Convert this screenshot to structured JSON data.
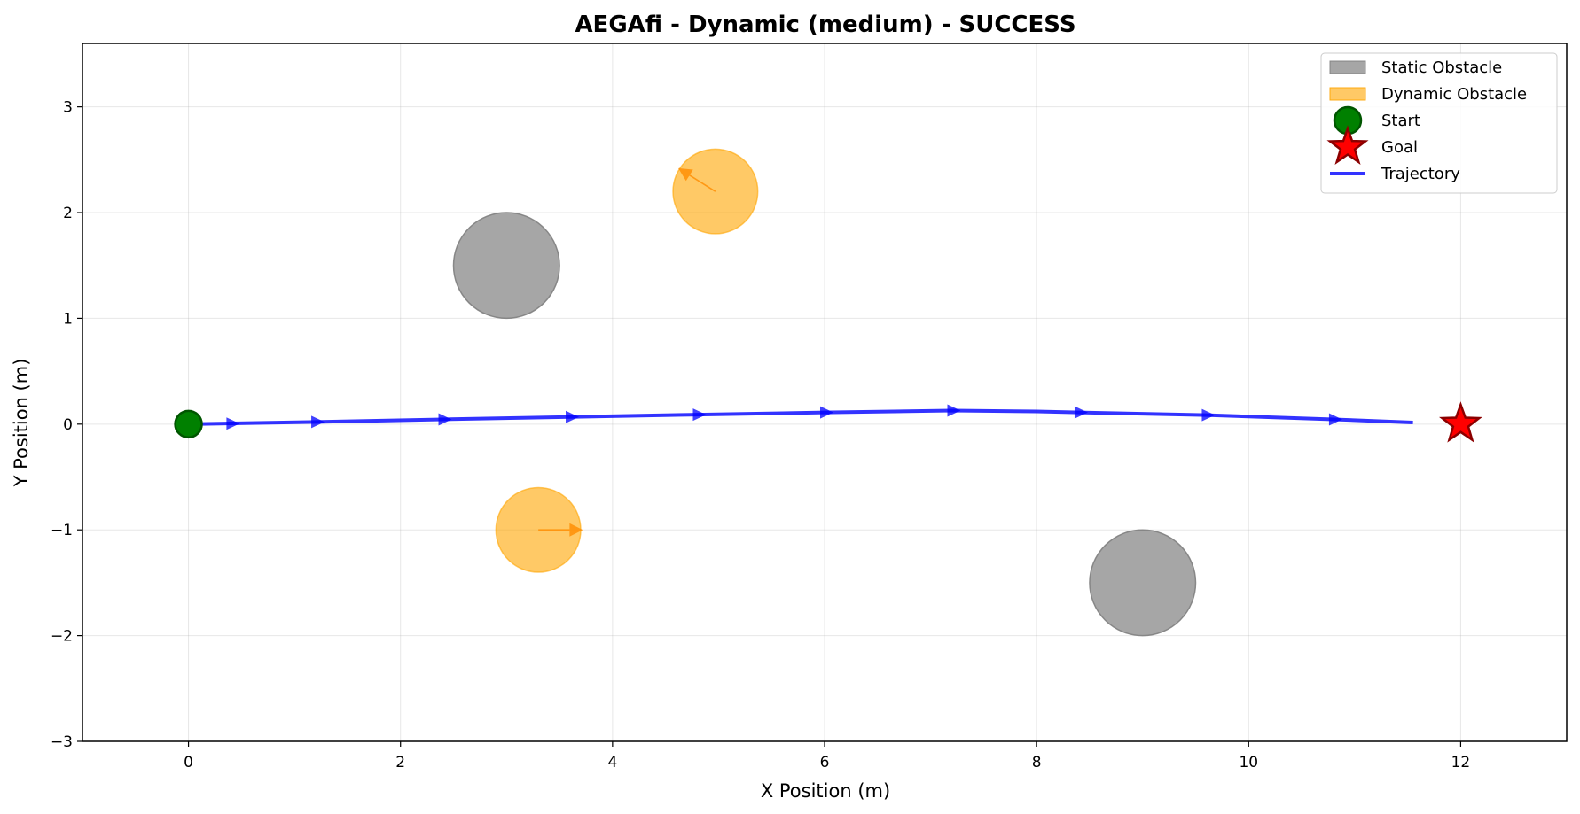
{
  "chart_data": {
    "type": "scatter",
    "title": "AEGAfi - Dynamic (medium) - SUCCESS",
    "xlabel": "X Position (m)",
    "ylabel": "Y Position (m)",
    "xlim": [
      -1,
      13
    ],
    "ylim": [
      -3,
      3.6
    ],
    "xticks": [
      0,
      2,
      4,
      6,
      8,
      10,
      12
    ],
    "yticks": [
      -3,
      -2,
      -1,
      0,
      1,
      2,
      3
    ],
    "grid": true,
    "legend_position": "top-right",
    "legend": [
      {
        "label": "Static Obstacle",
        "kind": "patch",
        "color": "#808080"
      },
      {
        "label": "Dynamic Obstacle",
        "kind": "patch",
        "color": "#ffa500"
      },
      {
        "label": "Start",
        "kind": "circle-marker",
        "color": "#008000"
      },
      {
        "label": "Goal",
        "kind": "star-marker",
        "color": "#ff0000"
      },
      {
        "label": "Trajectory",
        "kind": "line",
        "color": "#0000ff"
      }
    ],
    "static_obstacles": [
      {
        "x": 3.0,
        "y": 1.5,
        "r": 0.5
      },
      {
        "x": 9.0,
        "y": -1.5,
        "r": 0.5
      }
    ],
    "dynamic_obstacles": [
      {
        "x": 4.97,
        "y": 2.2,
        "r": 0.4,
        "vx": -0.35,
        "vy": 0.22
      },
      {
        "x": 3.3,
        "y": -1.0,
        "r": 0.4,
        "vx": 0.42,
        "vy": 0.0
      }
    ],
    "start": {
      "x": 0,
      "y": 0
    },
    "goal": {
      "x": 12,
      "y": 0
    },
    "trajectory": {
      "x": [
        0.0,
        1.2,
        2.4,
        3.6,
        4.8,
        6.0,
        7.2,
        8.0,
        8.4,
        9.6,
        10.8,
        11.55
      ],
      "y": [
        0.0,
        0.02,
        0.045,
        0.068,
        0.09,
        0.11,
        0.128,
        0.12,
        0.11,
        0.085,
        0.045,
        0.015
      ]
    },
    "trajectory_arrows": [
      {
        "x": 0.4,
        "y": 0.005
      },
      {
        "x": 1.2,
        "y": 0.02
      },
      {
        "x": 2.4,
        "y": 0.045
      },
      {
        "x": 3.6,
        "y": 0.068
      },
      {
        "x": 4.8,
        "y": 0.09
      },
      {
        "x": 6.0,
        "y": 0.11
      },
      {
        "x": 7.2,
        "y": 0.128
      },
      {
        "x": 8.4,
        "y": 0.11
      },
      {
        "x": 9.6,
        "y": 0.085
      },
      {
        "x": 10.8,
        "y": 0.045
      }
    ],
    "colors": {
      "static": "#808080",
      "dynamic": "#ffa500",
      "dynamic_arrow": "#ff8c00",
      "start": "#008000",
      "start_edge": "#005500",
      "goal": "#ff0000",
      "goal_edge": "#8b0000",
      "trajectory": "#0000ff"
    }
  }
}
